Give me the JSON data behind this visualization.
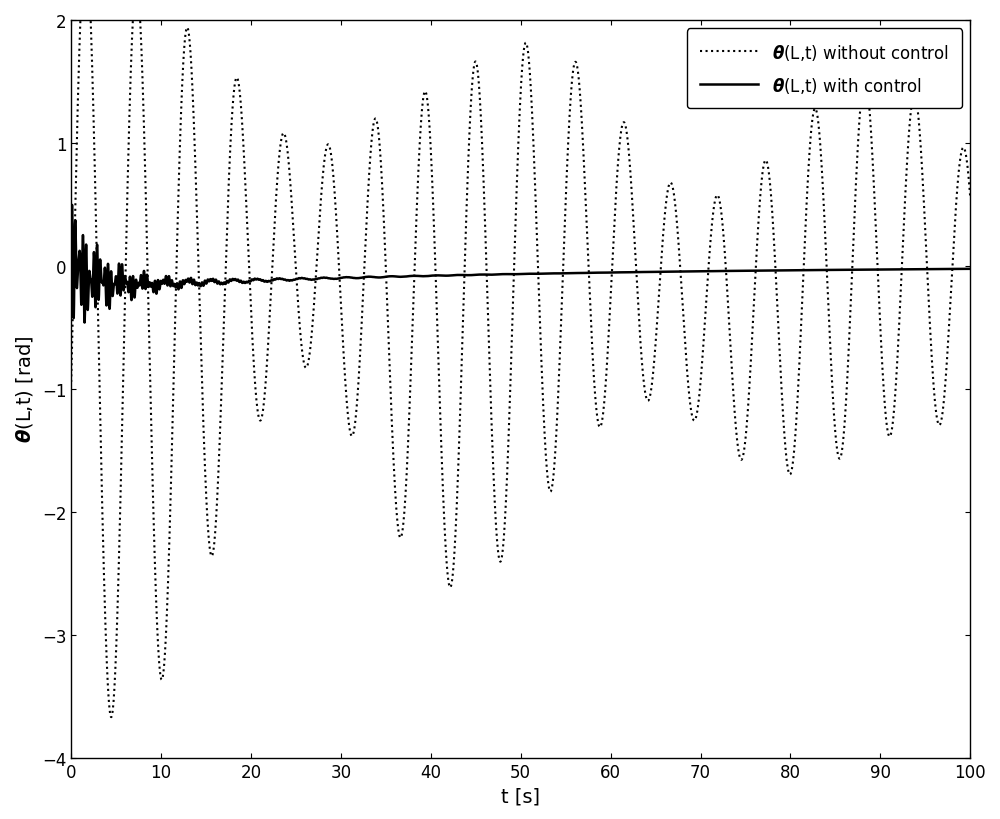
{
  "title": "",
  "xlabel": "t [s]",
  "ylabel": "$\\boldsymbol{\\theta}$(L,t) [rad]",
  "xlim": [
    0,
    100
  ],
  "ylim": [
    -4,
    2
  ],
  "yticks": [
    -4,
    -3,
    -2,
    -1,
    0,
    1,
    2
  ],
  "xticks": [
    0,
    10,
    20,
    30,
    40,
    50,
    60,
    70,
    80,
    90,
    100
  ],
  "legend_dotted": "$\\boldsymbol{\\theta}$(L,t) without control",
  "legend_solid": "$\\boldsymbol{\\theta}$(L,t) with control",
  "line_color": "black",
  "background_color": "white",
  "figsize": [
    10.0,
    8.2
  ],
  "dpi": 100
}
